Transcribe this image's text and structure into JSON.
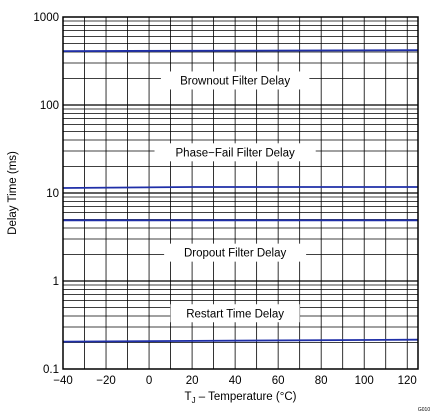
{
  "chart_data": {
    "type": "line",
    "xlabel": "T",
    "xlabel_sub": "J",
    "xlabel_rest": " – Temperature (°C)",
    "ylabel": "Delay Time (ms)",
    "xlim": [
      -40,
      125
    ],
    "ylim": [
      0.1,
      1000
    ],
    "yscale": "log",
    "grid": true,
    "x_ticks": [
      -40,
      -20,
      0,
      20,
      40,
      60,
      80,
      100,
      120
    ],
    "y_ticks": [
      0.1,
      1,
      10,
      100,
      1000
    ],
    "x_tick_labels": [
      "−40",
      "−20",
      "0",
      "20",
      "40",
      "60",
      "80",
      "100",
      "120"
    ],
    "y_tick_labels": [
      "0.1",
      "1",
      "10",
      "100",
      "1000"
    ],
    "series": [
      {
        "name": "Brownout Filter Delay",
        "color": "#1f2fa8",
        "x": [
          -40,
          125
        ],
        "y": [
          410,
          420
        ]
      },
      {
        "name": "Phase−Fail Filter Delay",
        "color": "#1f2fa8",
        "x": [
          -40,
          20,
          125
        ],
        "y": [
          11.4,
          11.7,
          11.7
        ]
      },
      {
        "name": "Dropout Filter Delay",
        "color": "#1f2fa8",
        "x": [
          -40,
          125
        ],
        "y": [
          4.9,
          4.9
        ]
      },
      {
        "name": "Restart Time Delay",
        "color": "#1f2fa8",
        "x": [
          -40,
          125
        ],
        "y": [
          0.205,
          0.215
        ]
      }
    ],
    "annotations": [
      {
        "text": "Brownout Filter Delay",
        "x": 40,
        "y": 190
      },
      {
        "text": "Phase−Fail Filter Delay",
        "x": 40,
        "y": 29
      },
      {
        "text": "Dropout Filter Delay",
        "x": 40,
        "y": 2.1
      },
      {
        "text": "Restart Time Delay",
        "x": 40,
        "y": 0.43
      }
    ],
    "footnote": "G010"
  }
}
